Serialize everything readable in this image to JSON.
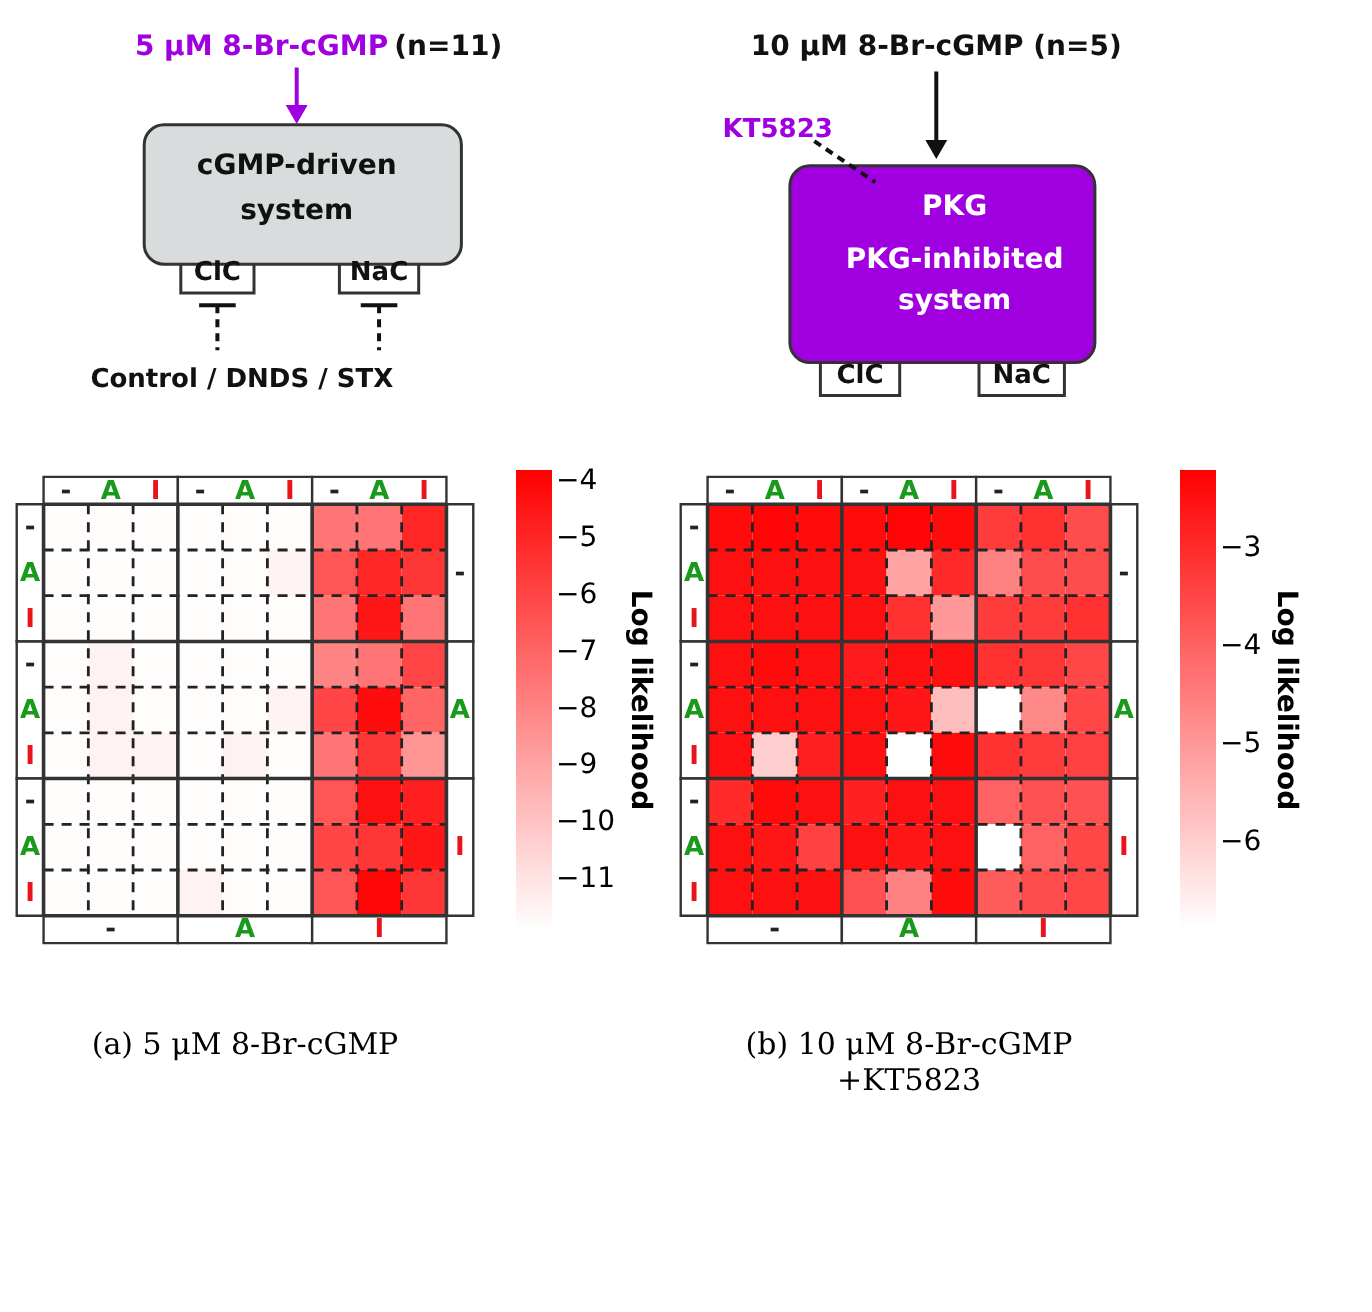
{
  "chart_data": [
    {
      "type": "heatmap",
      "title": "(a) 5 μM 8-Br-cGMP",
      "clabel": "Log likelihood",
      "categories": [
        "-",
        "A",
        "I",
        "-",
        "A",
        "I",
        "-",
        "A",
        "I"
      ],
      "y_categories": [
        "-",
        "A",
        "I",
        "-",
        "A",
        "I",
        "-",
        "A",
        "I"
      ],
      "cells": [
        [
          -11.8,
          -11.8,
          -11.8,
          -11.8,
          -11.8,
          -11.8,
          -7.5,
          -7.5,
          -5
        ],
        [
          -11.8,
          -11.8,
          -11.8,
          -11.8,
          -11.8,
          -11.5,
          -6.5,
          -5,
          -5.5
        ],
        [
          -11.8,
          -11.8,
          -11.8,
          -11.8,
          -11.8,
          -11.8,
          -7.5,
          -4.5,
          -7.5
        ],
        [
          -11.8,
          -11.5,
          -11.8,
          -11.8,
          -11.8,
          -11.8,
          -8,
          -7.5,
          -6
        ],
        [
          -11.8,
          -11.5,
          -11.8,
          -11.8,
          -11.8,
          -11.5,
          -6,
          -4.2,
          -7
        ],
        [
          -11.8,
          -11.5,
          -11.5,
          -11.8,
          -11.5,
          -11.8,
          -7.5,
          -5.5,
          -8.5
        ],
        [
          -11.8,
          -11.8,
          -11.8,
          -11.8,
          -11.8,
          -11.8,
          -6.5,
          -4.3,
          -4.8
        ],
        [
          -11.8,
          -11.8,
          -11.8,
          -11.8,
          -11.8,
          -11.8,
          -6,
          -5.5,
          -4.5
        ],
        [
          -11.8,
          -11.8,
          -11.8,
          -11.5,
          -11.8,
          -11.8,
          -6.5,
          -4,
          -5.5
        ]
      ],
      "clim": [
        -11.9,
        -3.8
      ],
      "cticks": [
        -4,
        -5,
        -6,
        -7,
        -8,
        -9,
        -10,
        -11
      ],
      "annotations": [
        "-",
        "A",
        "I",
        "-",
        "A",
        "I",
        "5 μM 8-Br-cGMP",
        "(n=11)",
        "cGMP-driven",
        "system",
        "ClC",
        "NaC",
        "Control / DNDS / STX"
      ]
    },
    {
      "type": "heatmap",
      "title": "(b)  10  μM  8-Br-cGMP",
      "subtitle": "+KT5823",
      "clabel": "Log likelihood",
      "categories": [
        "-",
        "A",
        "I",
        "-",
        "A",
        "I",
        "-",
        "A",
        "I"
      ],
      "y_categories": [
        "-",
        "A",
        "I",
        "-",
        "A",
        "I",
        "-",
        "A",
        "I"
      ],
      "cells": [
        [
          -2.4,
          -2.3,
          -2.4,
          -2.4,
          -2.3,
          -2.4,
          -3.3,
          -3.1,
          -3.6
        ],
        [
          -2.5,
          -2.5,
          -2.5,
          -2.5,
          -5.2,
          -3.0,
          -4.6,
          -3.6,
          -3.6
        ],
        [
          -2.5,
          -2.5,
          -2.5,
          -2.5,
          -3.1,
          -5.0,
          -3.3,
          -3.3,
          -3.1
        ],
        [
          -2.5,
          -2.4,
          -2.5,
          -2.7,
          -2.5,
          -2.5,
          -3.1,
          -3.2,
          -3.5
        ],
        [
          -2.5,
          -2.5,
          -2.5,
          -2.5,
          -2.6,
          -5.7,
          -6.9,
          -4.7,
          -3.5
        ],
        [
          -2.5,
          -6.0,
          -2.8,
          -2.5,
          -6.9,
          -2.4,
          -3.1,
          -3.3,
          -3.4
        ],
        [
          -3.0,
          -2.4,
          -2.5,
          -2.8,
          -2.5,
          -2.5,
          -4.0,
          -3.7,
          -3.7
        ],
        [
          -2.5,
          -2.6,
          -3.4,
          -2.5,
          -2.6,
          -2.5,
          -6.9,
          -4.0,
          -3.5
        ],
        [
          -2.5,
          -2.5,
          -2.5,
          -3.7,
          -4.6,
          -2.4,
          -3.9,
          -3.6,
          -3.5
        ]
      ],
      "clim": [
        -6.9,
        -2.2
      ],
      "cticks": [
        -3,
        -4,
        -5,
        -6
      ],
      "annotations": [
        "-",
        "A",
        "I",
        "-",
        "A",
        "I",
        "10 μM 8-Br-cGMP (n=5)",
        "KT5823",
        "PKG",
        "PKG-inhibited",
        "system",
        "ClC",
        "NaC"
      ]
    }
  ]
}
